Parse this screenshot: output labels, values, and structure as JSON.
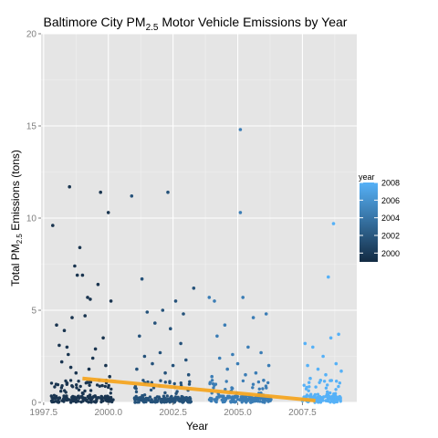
{
  "chart_data": {
    "type": "scatter",
    "title_main": "Baltimore City PM",
    "title_sub": "2.5",
    "title_rest": " Motor Vehicle Emissions by Year",
    "xlabel": "Year",
    "ylabel_main": "Total PM",
    "ylabel_sub": "2.5",
    "ylabel_rest": " Emissions (tons)",
    "xlim": [
      1997.4,
      2009.6
    ],
    "ylim": [
      0,
      20
    ],
    "x_ticks": [
      1997.5,
      2000.0,
      2002.5,
      2005.0,
      2007.5
    ],
    "x_tick_labels": [
      "1997.5",
      "2000.0",
      "2002.5",
      "2005.0",
      "2007.5"
    ],
    "y_ticks": [
      0,
      5,
      10,
      15,
      20
    ],
    "y_tick_labels": [
      "0",
      "5",
      "10",
      "15",
      "20"
    ],
    "grid": true,
    "legend": {
      "title": "year",
      "placement": "right",
      "ticks": [
        2000,
        2002,
        2004,
        2006,
        2008
      ],
      "tick_labels": [
        "2000",
        "2002",
        "2004",
        "2006",
        "2008"
      ],
      "color_low": "#132B43",
      "color_high": "#56B1F7"
    },
    "trend_color": "#F5A623",
    "trend": {
      "x": [
        1999.0,
        2008.0
      ],
      "y": [
        1.3,
        0.1
      ]
    },
    "groups": [
      {
        "year": 1999,
        "x_range": [
          1997.8,
          2000.2
        ],
        "color": "#1a3550",
        "notable": [
          [
            1997.85,
            9.6
          ],
          [
            1998.5,
            11.7
          ],
          [
            1999.7,
            11.4
          ],
          [
            2000.0,
            10.3
          ],
          [
            1998.9,
            8.4
          ],
          [
            1998.7,
            7.4
          ],
          [
            1999.0,
            6.9
          ],
          [
            1998.8,
            6.9
          ],
          [
            1999.6,
            6.4
          ],
          [
            1999.2,
            5.7
          ],
          [
            1999.3,
            5.6
          ],
          [
            2000.1,
            5.5
          ],
          [
            1998.0,
            4.2
          ],
          [
            1998.6,
            4.6
          ],
          [
            1999.1,
            4.7
          ],
          [
            1998.3,
            3.9
          ],
          [
            1999.8,
            3.5
          ],
          [
            1998.1,
            3.1
          ],
          [
            1998.4,
            3.0
          ],
          [
            1999.5,
            2.9
          ],
          [
            1999.4,
            2.4
          ],
          [
            1998.2,
            2.2
          ],
          [
            1999.9,
            2.0
          ],
          [
            1998.55,
            1.9
          ],
          [
            1999.25,
            1.8
          ],
          [
            2000.05,
            1.4
          ],
          [
            1998.75,
            1.6
          ],
          [
            1999.65,
            1.2
          ],
          [
            1998.45,
            2.6
          ]
        ],
        "n_low": 170
      },
      {
        "year": 2002,
        "x_range": [
          2001.0,
          2003.2
        ],
        "color": "#25527a",
        "notable": [
          [
            2000.9,
            11.2
          ],
          [
            2002.3,
            11.4
          ],
          [
            2001.3,
            6.7
          ],
          [
            2003.3,
            6.2
          ],
          [
            2002.6,
            5.5
          ],
          [
            2001.5,
            4.9
          ],
          [
            2002.1,
            5.0
          ],
          [
            2002.9,
            4.8
          ],
          [
            2001.8,
            4.3
          ],
          [
            2002.4,
            4.0
          ],
          [
            2001.2,
            3.6
          ],
          [
            2002.8,
            3.2
          ],
          [
            2001.4,
            2.5
          ],
          [
            2002.0,
            2.7
          ],
          [
            2003.0,
            2.3
          ],
          [
            2001.7,
            2.1
          ],
          [
            2002.5,
            2.0
          ],
          [
            2001.1,
            1.8
          ],
          [
            2002.2,
            1.6
          ],
          [
            2003.1,
            1.5
          ]
        ],
        "n_low": 150
      },
      {
        "year": 2005,
        "x_range": [
          2003.9,
          2006.3
        ],
        "color": "#3b7db5",
        "notable": [
          [
            2005.1,
            14.8
          ],
          [
            2005.1,
            10.3
          ],
          [
            2003.9,
            5.7
          ],
          [
            2004.1,
            5.5
          ],
          [
            2005.2,
            5.7
          ],
          [
            2006.1,
            4.8
          ],
          [
            2004.5,
            4.2
          ],
          [
            2005.6,
            4.6
          ],
          [
            2004.2,
            3.6
          ],
          [
            2005.4,
            3.0
          ],
          [
            2004.8,
            2.6
          ],
          [
            2005.9,
            2.7
          ],
          [
            2004.3,
            2.4
          ],
          [
            2005.0,
            2.1
          ],
          [
            2006.2,
            2.0
          ],
          [
            2004.6,
            1.8
          ],
          [
            2005.7,
            1.6
          ],
          [
            2004.0,
            1.4
          ],
          [
            2005.3,
            1.5
          ],
          [
            2006.0,
            1.2
          ]
        ],
        "n_low": 160
      },
      {
        "year": 2008,
        "x_range": [
          2007.5,
          2009.0
        ],
        "color": "#56b1f7",
        "notable": [
          [
            2008.7,
            9.7
          ],
          [
            2008.5,
            6.8
          ],
          [
            2008.9,
            3.7
          ],
          [
            2008.6,
            3.5
          ],
          [
            2007.6,
            3.2
          ],
          [
            2007.9,
            3.0
          ],
          [
            2008.3,
            2.5
          ],
          [
            2008.8,
            2.1
          ],
          [
            2007.7,
            2.0
          ],
          [
            2008.1,
            1.8
          ],
          [
            2009.0,
            1.7
          ],
          [
            2008.4,
            1.5
          ],
          [
            2007.8,
            1.3
          ],
          [
            2008.2,
            1.2
          ]
        ],
        "n_low": 130
      }
    ]
  }
}
